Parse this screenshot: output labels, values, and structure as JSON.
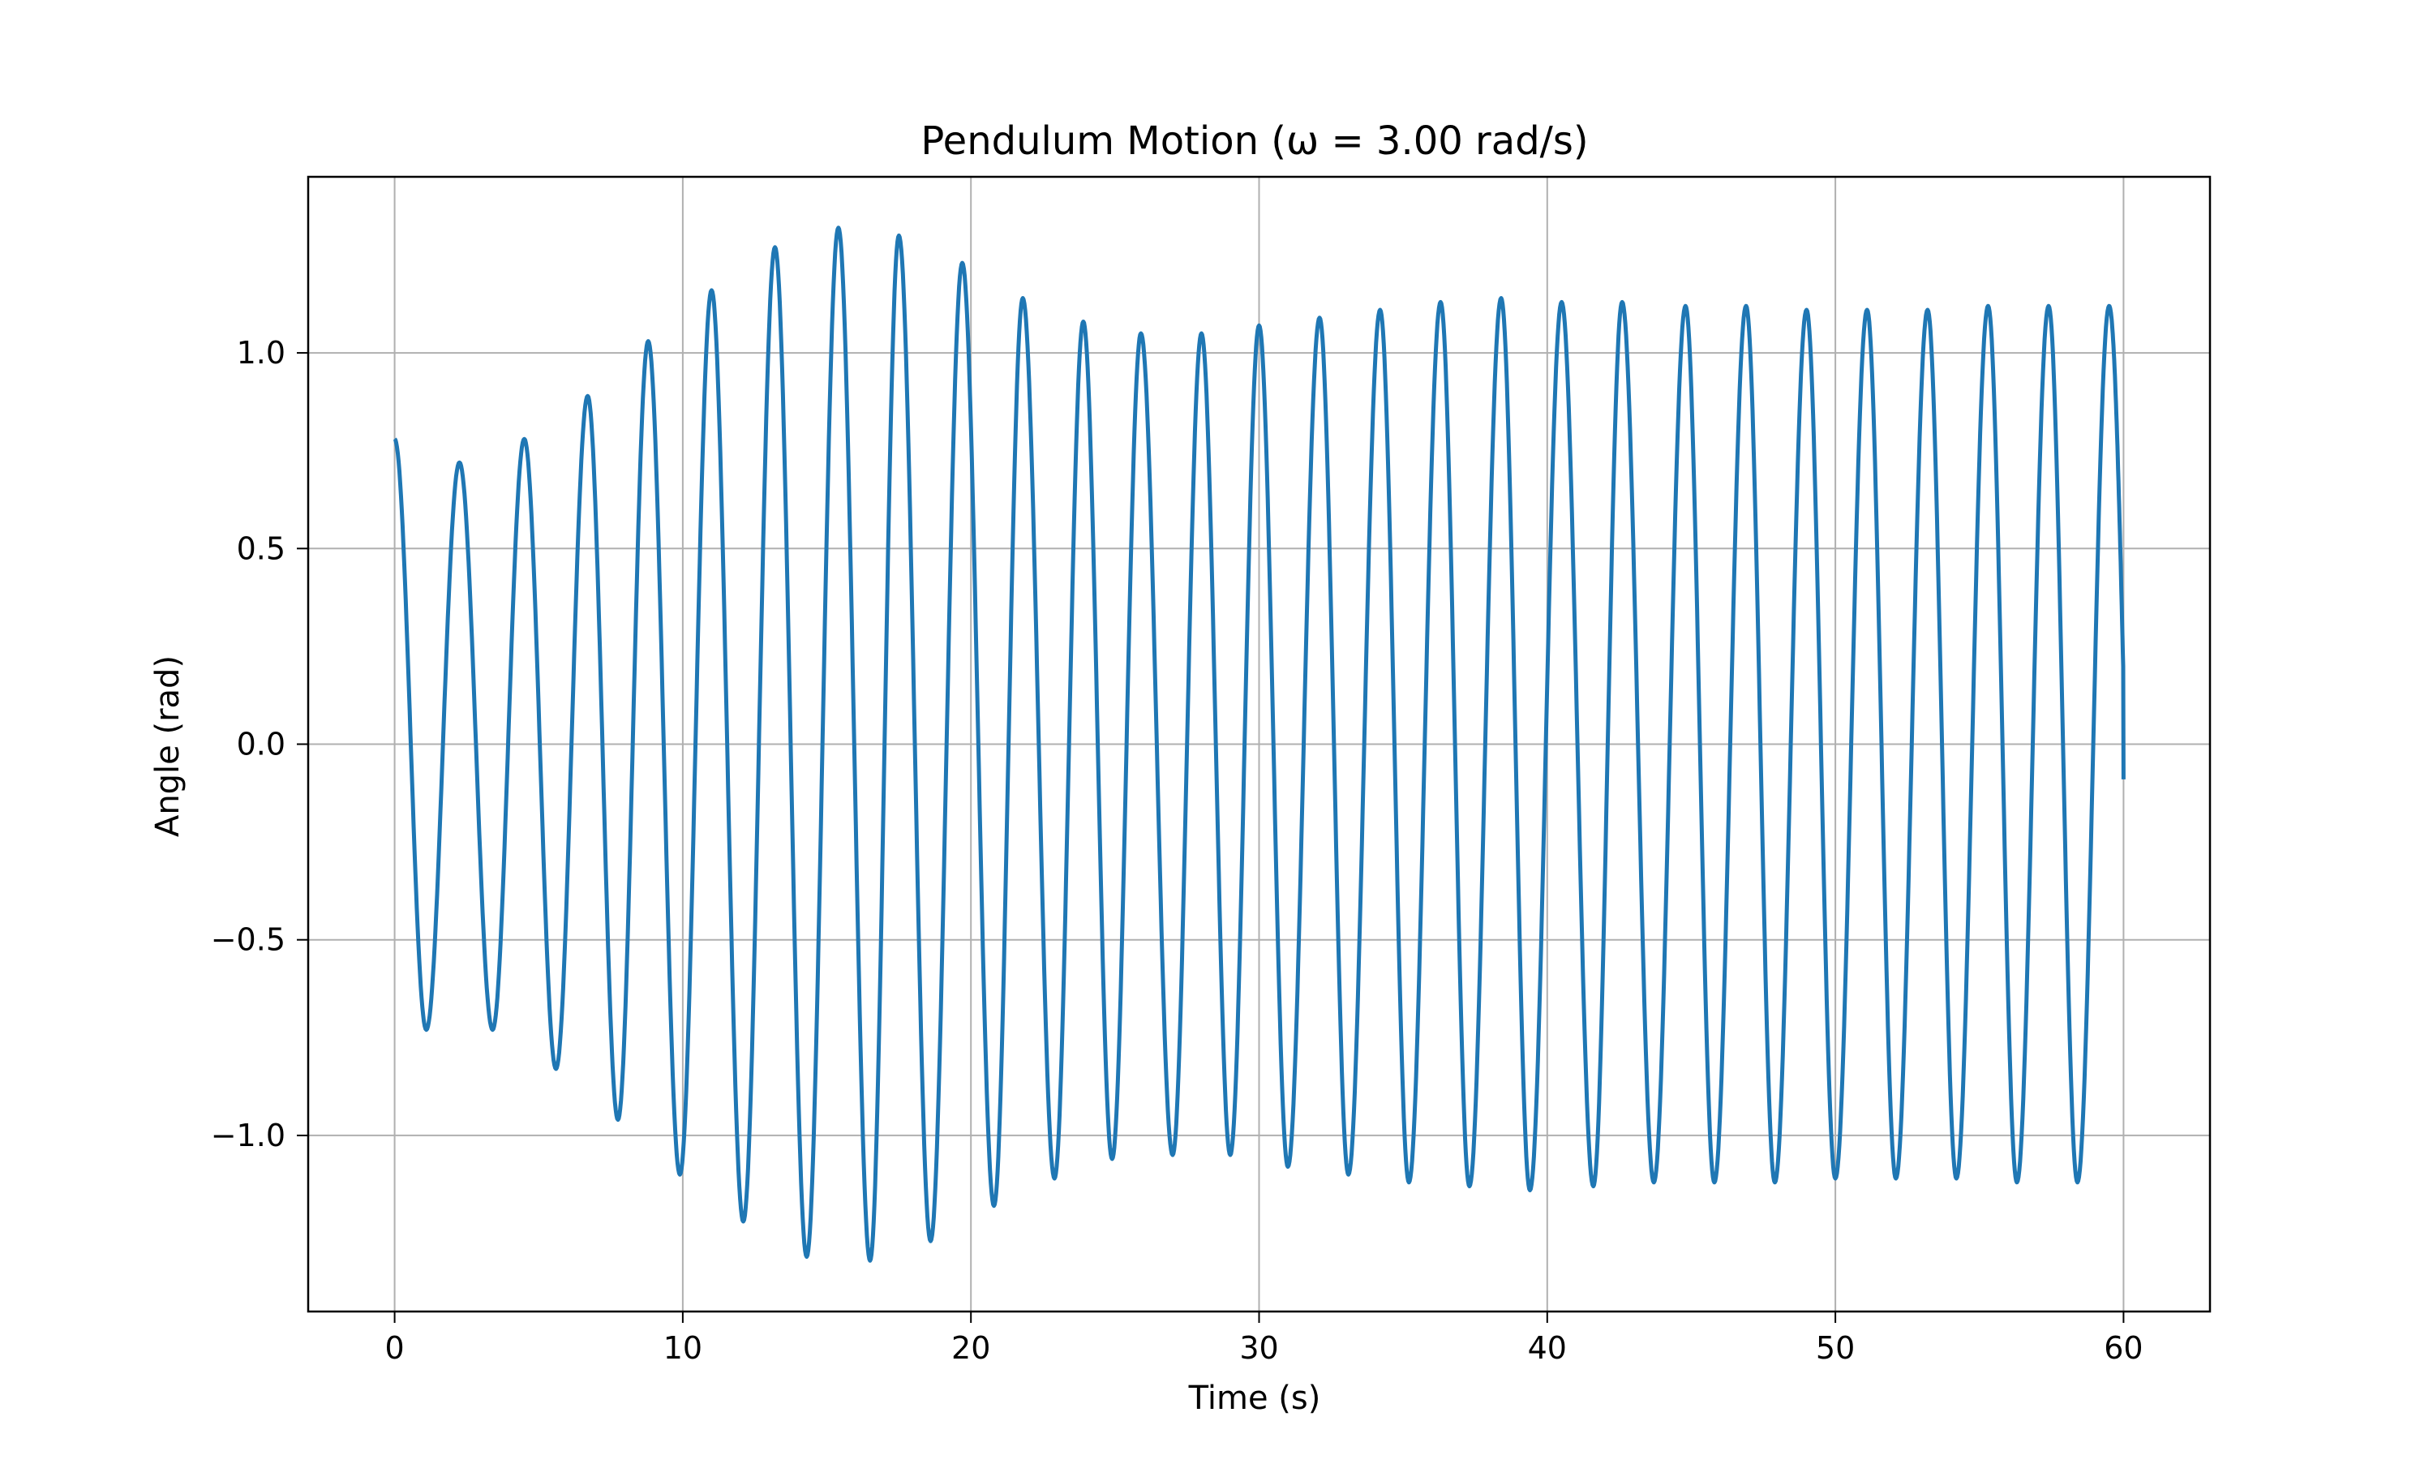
{
  "chart_data": {
    "type": "line",
    "title": "Pendulum Motion (ω = 3.00 rad/s)",
    "xlabel": "Time (s)",
    "ylabel": "Angle (rad)",
    "xlim": [
      -3.0,
      63.0
    ],
    "ylim": [
      -1.45,
      1.45
    ],
    "x_ticks": [
      0,
      10,
      20,
      30,
      40,
      50,
      60
    ],
    "x_tick_labels": [
      "0",
      "10",
      "20",
      "30",
      "40",
      "50",
      "60"
    ],
    "y_ticks": [
      -1.0,
      -0.5,
      0.0,
      0.5,
      1.0
    ],
    "y_tick_labels": [
      "−1.0",
      "−0.5",
      "0.0",
      "0.5",
      "1.0"
    ],
    "grid": true,
    "legend": "none",
    "colors": {
      "line": "#1f77b4",
      "grid": "#b0b0b0",
      "frame": "#000000",
      "background": "#ffffff"
    },
    "series": [
      {
        "x_start": 0,
        "x_end": 60,
        "initial_value": 0.78,
        "final_value": -0.09,
        "extrema": [
          [
            0.0,
            0.78
          ],
          [
            1.1,
            -0.73
          ],
          [
            2.25,
            0.72
          ],
          [
            3.4,
            -0.73
          ],
          [
            4.5,
            0.78
          ],
          [
            5.6,
            -0.83
          ],
          [
            6.7,
            0.89
          ],
          [
            7.75,
            -0.96
          ],
          [
            8.8,
            1.03
          ],
          [
            9.9,
            -1.1
          ],
          [
            11.0,
            1.16
          ],
          [
            12.1,
            -1.22
          ],
          [
            13.2,
            1.27
          ],
          [
            14.3,
            -1.31
          ],
          [
            15.4,
            1.32
          ],
          [
            16.5,
            -1.32
          ],
          [
            17.5,
            1.3
          ],
          [
            18.6,
            -1.27
          ],
          [
            19.7,
            1.23
          ],
          [
            20.8,
            -1.18
          ],
          [
            21.8,
            1.14
          ],
          [
            22.9,
            -1.11
          ],
          [
            23.9,
            1.08
          ],
          [
            24.9,
            -1.06
          ],
          [
            25.9,
            1.05
          ],
          [
            27.0,
            -1.05
          ],
          [
            28.0,
            1.05
          ],
          [
            29.0,
            -1.05
          ],
          [
            30.0,
            1.07
          ],
          [
            31.0,
            -1.08
          ],
          [
            32.1,
            1.09
          ],
          [
            33.1,
            -1.1
          ],
          [
            34.2,
            1.11
          ],
          [
            35.2,
            -1.12
          ],
          [
            36.3,
            1.13
          ],
          [
            37.3,
            -1.13
          ],
          [
            38.4,
            1.14
          ],
          [
            39.4,
            -1.14
          ],
          [
            40.5,
            1.13
          ],
          [
            41.6,
            -1.13
          ],
          [
            42.6,
            1.13
          ],
          [
            43.7,
            -1.12
          ],
          [
            44.8,
            1.12
          ],
          [
            45.8,
            -1.12
          ],
          [
            46.9,
            1.12
          ],
          [
            47.9,
            -1.12
          ],
          [
            49.0,
            1.11
          ],
          [
            50.0,
            -1.11
          ],
          [
            51.1,
            1.11
          ],
          [
            52.1,
            -1.11
          ],
          [
            53.2,
            1.11
          ],
          [
            54.2,
            -1.11
          ],
          [
            55.3,
            1.12
          ],
          [
            56.3,
            -1.12
          ],
          [
            57.4,
            1.12
          ],
          [
            58.4,
            -1.12
          ],
          [
            59.5,
            1.12
          ],
          [
            60.0,
            -0.09
          ]
        ]
      }
    ]
  }
}
